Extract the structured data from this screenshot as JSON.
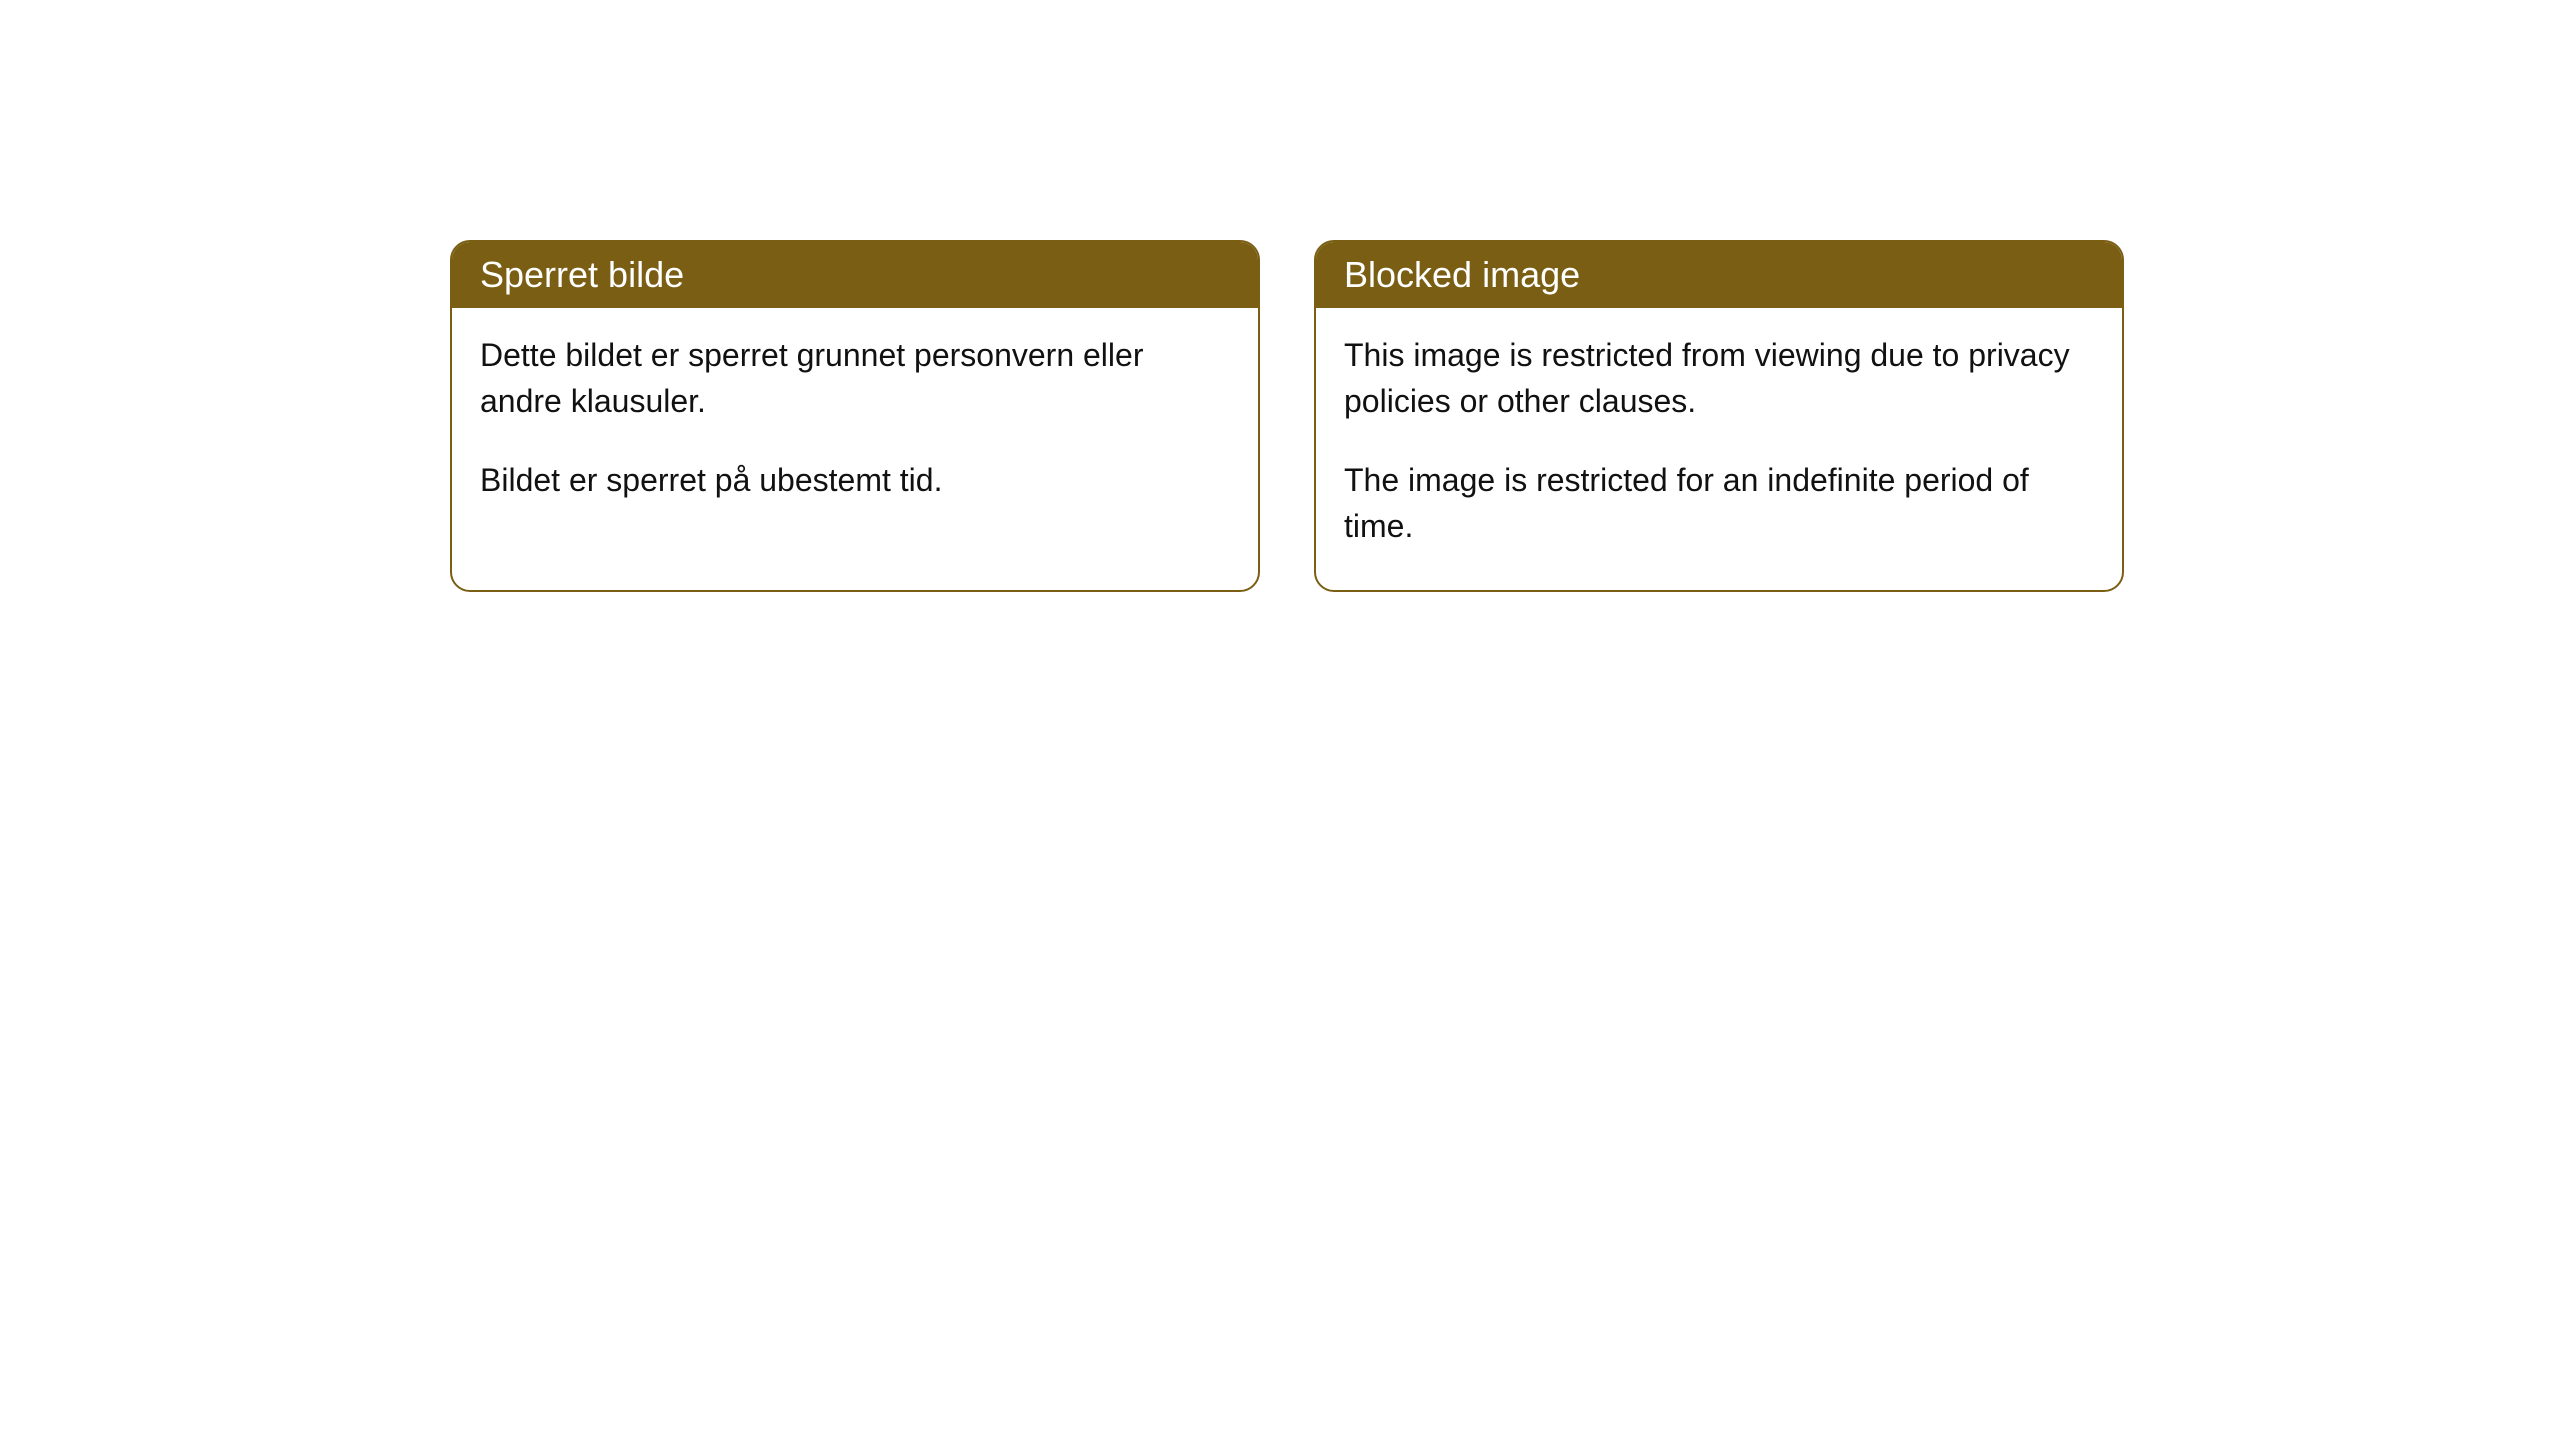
{
  "cards": [
    {
      "title": "Sperret bilde",
      "paragraph1": "Dette bildet er sperret grunnet personvern eller andre klausuler.",
      "paragraph2": "Bildet er sperret på ubestemt tid."
    },
    {
      "title": "Blocked image",
      "paragraph1": "This image is restricted from viewing due to privacy policies or other clauses.",
      "paragraph2": "The image is restricted for an indefinite period of time."
    }
  ],
  "style": {
    "header_background": "#7a5e14",
    "header_text_color": "#ffffff",
    "border_color": "#7a5e14",
    "body_text_color": "#111111",
    "card_background": "#ffffff",
    "border_radius": 20,
    "title_fontsize": 36,
    "body_fontsize": 32
  }
}
